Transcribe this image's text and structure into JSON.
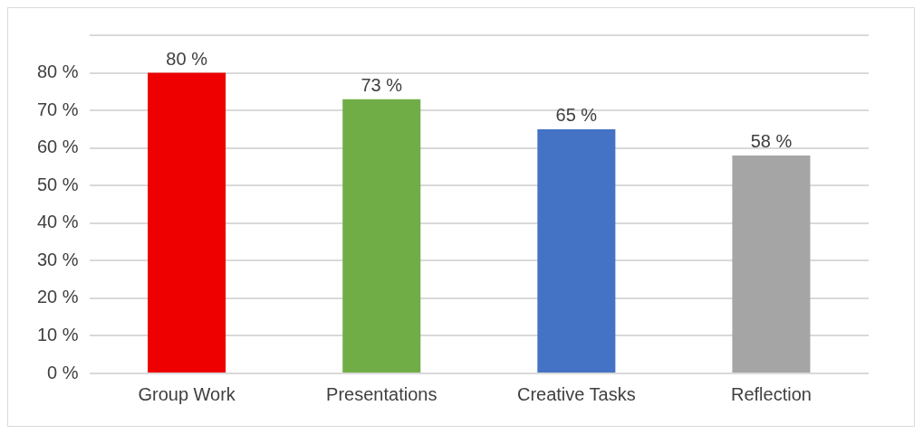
{
  "chart_data": {
    "type": "bar",
    "categories": [
      "Group Work",
      "Presentations",
      "Creative Tasks",
      "Reflection"
    ],
    "values": [
      80,
      73,
      65,
      58
    ],
    "colors": [
      "#ee0000",
      "#70ad47",
      "#4472c4",
      "#a5a5a5"
    ],
    "value_labels": [
      "80 %",
      "73 %",
      "65 %",
      "58 %"
    ],
    "ylim": [
      0,
      90
    ],
    "yticks": [
      {
        "value": 0,
        "label": "0 %"
      },
      {
        "value": 10,
        "label": "10 %"
      },
      {
        "value": 20,
        "label": "20 %"
      },
      {
        "value": 30,
        "label": "30 %"
      },
      {
        "value": 40,
        "label": "40 %"
      },
      {
        "value": 50,
        "label": "50 %"
      },
      {
        "value": 60,
        "label": "60 %"
      },
      {
        "value": 70,
        "label": "70 %"
      },
      {
        "value": 80,
        "label": "80 %"
      },
      {
        "value": 90,
        "label": null
      }
    ],
    "grid": "y",
    "legend": false
  }
}
